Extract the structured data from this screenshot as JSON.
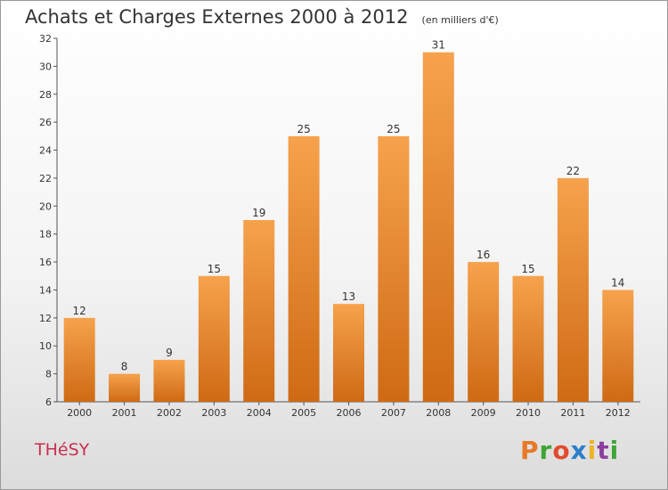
{
  "header": {
    "title": "Achats et Charges Externes 2000 à 2012",
    "subtitle": "(en milliers d'€)"
  },
  "footer": {
    "commune": "THéSY",
    "brand": "Proxiti",
    "brand_letters": [
      {
        "char": "P",
        "color": "#e8792a"
      },
      {
        "char": "r",
        "color": "#3fa535"
      },
      {
        "char": "o",
        "color": "#e04a2f"
      },
      {
        "char": "x",
        "color": "#2c7fc9"
      },
      {
        "char": "i",
        "color": "#f0b323"
      },
      {
        "char": "t",
        "color": "#8c3f9e"
      },
      {
        "char": "i",
        "color": "#3fa535"
      }
    ]
  },
  "chart_data": {
    "type": "bar",
    "title": "Achats et Charges Externes 2000 à 2012",
    "subtitle": "(en milliers d'€)",
    "categories": [
      "2000",
      "2001",
      "2002",
      "2003",
      "2004",
      "2005",
      "2006",
      "2007",
      "2008",
      "2009",
      "2010",
      "2011",
      "2012"
    ],
    "values": [
      12,
      8,
      9,
      15,
      19,
      25,
      13,
      25,
      31,
      16,
      15,
      22,
      14
    ],
    "ylim": [
      6,
      32
    ],
    "yticks": [
      6,
      8,
      10,
      12,
      14,
      16,
      18,
      20,
      22,
      24,
      26,
      28,
      30,
      32
    ],
    "grid": false,
    "bar_color_top": "#f6a24c",
    "bar_color_bottom": "#cf6a14"
  }
}
